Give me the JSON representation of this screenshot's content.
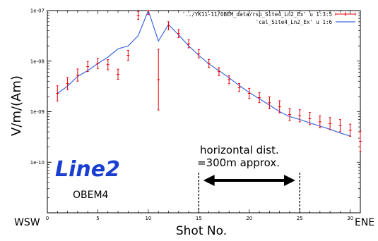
{
  "chart_data": {
    "type": "line",
    "ylabel": "V/m/(Am)",
    "xlabel": "Shot No.",
    "x_left_label": "WSW",
    "x_right_label": "ENE",
    "y_scale": "log",
    "xlim": [
      0,
      31
    ],
    "ylim": [
      1e-11,
      1e-07
    ],
    "x_ticks": [
      0,
      5,
      10,
      15,
      20,
      25,
      30
    ],
    "y_ticks": [
      {
        "value": 1e-07,
        "label": "1e-07"
      },
      {
        "value": 1e-08,
        "label": "1e-08"
      },
      {
        "value": 1e-09,
        "label": "1e-09"
      },
      {
        "value": 1e-10,
        "label": "1e-10"
      }
    ],
    "legend_position": "top-right",
    "series": [
      {
        "name": "'../YK11-11/OBEM_data/rsp_Site4_Ln2_Ex' u 1:3:5",
        "kind": "errorbars",
        "color": "#e8000b",
        "points": [
          {
            "x": 1,
            "y": 2.3e-09,
            "err": 0.15
          },
          {
            "x": 2,
            "y": 3.6e-09,
            "err": 0.12
          },
          {
            "x": 3,
            "y": 5.3e-09,
            "err": 0.12
          },
          {
            "x": 4,
            "y": 7.8e-09,
            "err": 0.1
          },
          {
            "x": 5,
            "y": 9e-09,
            "err": 0.1
          },
          {
            "x": 6,
            "y": 8.5e-09,
            "err": 0.1
          },
          {
            "x": 7,
            "y": 5.5e-09,
            "err": 0.1
          },
          {
            "x": 8,
            "y": 1.3e-08,
            "err": 0.1
          },
          {
            "x": 9,
            "y": 8e-08,
            "err": 0.08
          },
          {
            "x": 10,
            "y": 1e-07,
            "err": 0.08
          },
          {
            "x": 11,
            "y": 4.3e-09,
            "err": 0.6
          },
          {
            "x": 12,
            "y": 5e-08,
            "err": 0.08
          },
          {
            "x": 13,
            "y": 3.5e-08,
            "err": 0.08
          },
          {
            "x": 14,
            "y": 2.2e-08,
            "err": 0.08
          },
          {
            "x": 15,
            "y": 1.4e-08,
            "err": 0.08
          },
          {
            "x": 16,
            "y": 9e-09,
            "err": 0.08
          },
          {
            "x": 17,
            "y": 6.2e-09,
            "err": 0.08
          },
          {
            "x": 18,
            "y": 4.3e-09,
            "err": 0.08
          },
          {
            "x": 19,
            "y": 3e-09,
            "err": 0.08
          },
          {
            "x": 20,
            "y": 2.3e-09,
            "err": 0.1
          },
          {
            "x": 21,
            "y": 1.9e-09,
            "err": 0.1
          },
          {
            "x": 22,
            "y": 1.5e-09,
            "err": 0.12
          },
          {
            "x": 23,
            "y": 1.25e-09,
            "err": 0.12
          },
          {
            "x": 24,
            "y": 8.8e-10,
            "err": 0.12
          },
          {
            "x": 25,
            "y": 8.3e-10,
            "err": 0.12
          },
          {
            "x": 26,
            "y": 7.3e-10,
            "err": 0.12
          },
          {
            "x": 27,
            "y": 6.3e-10,
            "err": 0.12
          },
          {
            "x": 28,
            "y": 5.8e-10,
            "err": 0.12
          },
          {
            "x": 29,
            "y": 5.3e-10,
            "err": 0.12
          },
          {
            "x": 30,
            "y": 4.3e-10,
            "err": 0.12
          },
          {
            "x": 31,
            "y": 2.6e-10,
            "err": 0.2
          }
        ]
      },
      {
        "name": "'cal_Site4_Ln2_Ex' u 1:6",
        "kind": "line",
        "color": "#3d67e0",
        "points": [
          {
            "x": 1,
            "y": 2.3e-09
          },
          {
            "x": 2,
            "y": 3.2e-09
          },
          {
            "x": 3,
            "y": 5e-09
          },
          {
            "x": 4,
            "y": 6.5e-09
          },
          {
            "x": 5,
            "y": 9e-09
          },
          {
            "x": 6,
            "y": 1.2e-08
          },
          {
            "x": 7,
            "y": 1.75e-08
          },
          {
            "x": 8,
            "y": 2e-08
          },
          {
            "x": 9,
            "y": 3.2e-08
          },
          {
            "x": 10,
            "y": 1e-07
          },
          {
            "x": 11,
            "y": 2.5e-08
          },
          {
            "x": 12,
            "y": 5.3e-08
          },
          {
            "x": 13,
            "y": 3.3e-08
          },
          {
            "x": 14,
            "y": 2e-08
          },
          {
            "x": 15,
            "y": 1.3e-08
          },
          {
            "x": 16,
            "y": 8.8e-09
          },
          {
            "x": 17,
            "y": 6.5e-09
          },
          {
            "x": 18,
            "y": 4.7e-09
          },
          {
            "x": 19,
            "y": 3.3e-09
          },
          {
            "x": 20,
            "y": 2.4e-09
          },
          {
            "x": 21,
            "y": 1.8e-09
          },
          {
            "x": 22,
            "y": 1.35e-09
          },
          {
            "x": 23,
            "y": 1e-09
          },
          {
            "x": 24,
            "y": 8e-10
          },
          {
            "x": 25,
            "y": 7e-10
          },
          {
            "x": 26,
            "y": 6e-10
          },
          {
            "x": 27,
            "y": 5.2e-10
          },
          {
            "x": 28,
            "y": 4.5e-10
          },
          {
            "x": 29,
            "y": 3.8e-10
          },
          {
            "x": 30,
            "y": 3.3e-10
          }
        ]
      }
    ],
    "annotations": {
      "line_name": "Line2",
      "station": "OBEM4",
      "distance_line1": "horizontal dist.",
      "distance_line2": "=300m approx.",
      "arrow_from_x": 16,
      "arrow_to_x": 24,
      "dashed_x": [
        15,
        25
      ],
      "line_name_color": "#1a3fd0"
    }
  }
}
